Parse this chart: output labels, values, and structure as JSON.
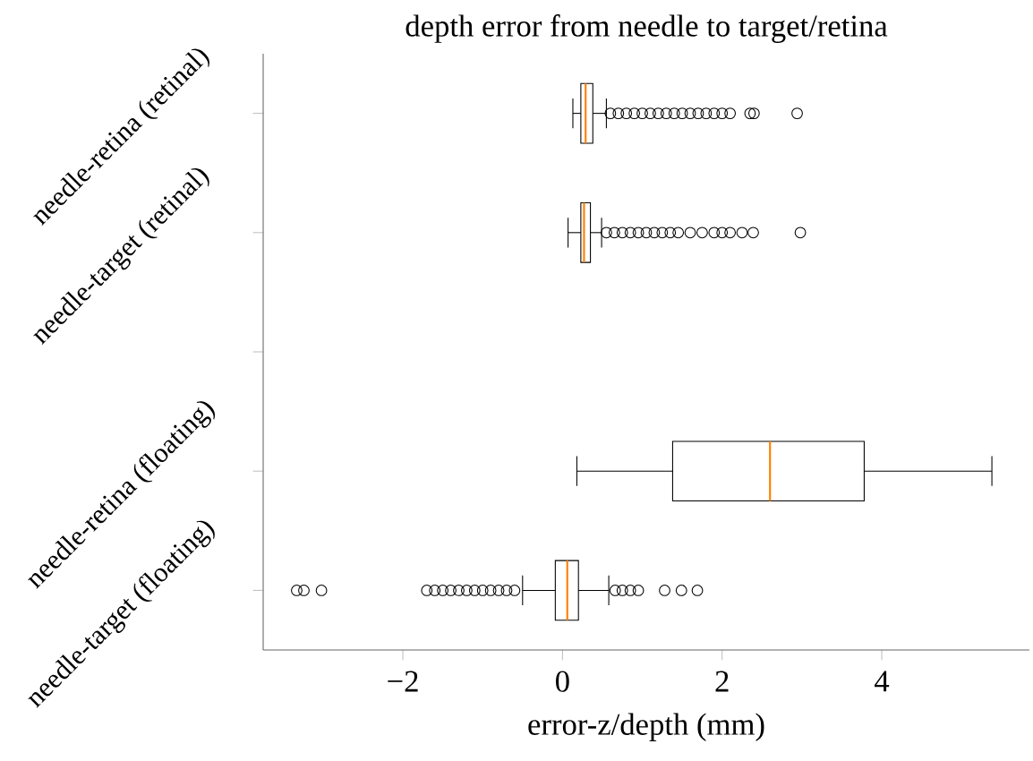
{
  "chart_data": {
    "type": "box",
    "orientation": "horizontal",
    "title": "depth error from needle to target/retina",
    "xlabel": "error-z/depth (mm)",
    "categories": [
      "needle-retina (retinal)",
      "needle-target (retinal)",
      null,
      "needle-retina (floating)",
      "needle-target (floating)"
    ],
    "boxes": [
      {
        "low": 0.13,
        "q1": 0.23,
        "median": 0.29,
        "q3": 0.38,
        "high": 0.55,
        "outliers": [
          0.6,
          0.7,
          0.8,
          0.9,
          1.0,
          1.1,
          1.2,
          1.3,
          1.4,
          1.5,
          1.6,
          1.7,
          1.8,
          1.9,
          2.0,
          2.1,
          2.35,
          2.4,
          2.94
        ]
      },
      {
        "low": 0.07,
        "q1": 0.23,
        "median": 0.27,
        "q3": 0.35,
        "high": 0.49,
        "outliers": [
          0.55,
          0.65,
          0.75,
          0.85,
          0.95,
          1.05,
          1.15,
          1.25,
          1.35,
          1.45,
          1.6,
          1.75,
          1.9,
          2.0,
          2.1,
          2.25,
          2.39,
          2.98
        ]
      },
      null,
      {
        "low": 0.18,
        "q1": 1.38,
        "median": 2.6,
        "q3": 3.78,
        "high": 5.38
      },
      {
        "low": -0.5,
        "q1": -0.09,
        "median": 0.06,
        "q3": 0.2,
        "high": 0.58,
        "outliers": [
          -3.33,
          -3.24,
          -3.02,
          -1.7,
          -1.6,
          -1.5,
          -1.4,
          -1.3,
          -1.2,
          -1.1,
          -1.0,
          -0.9,
          -0.8,
          -0.7,
          -0.6,
          0.66,
          0.75,
          0.85,
          0.95,
          1.28,
          1.49,
          1.69
        ]
      }
    ],
    "color": "#000000",
    "marker": "circle",
    "xlim": [
      -3.75,
      5.85
    ],
    "xticks": [
      {
        "value": -2,
        "label": "−2"
      },
      0,
      2,
      4
    ]
  }
}
